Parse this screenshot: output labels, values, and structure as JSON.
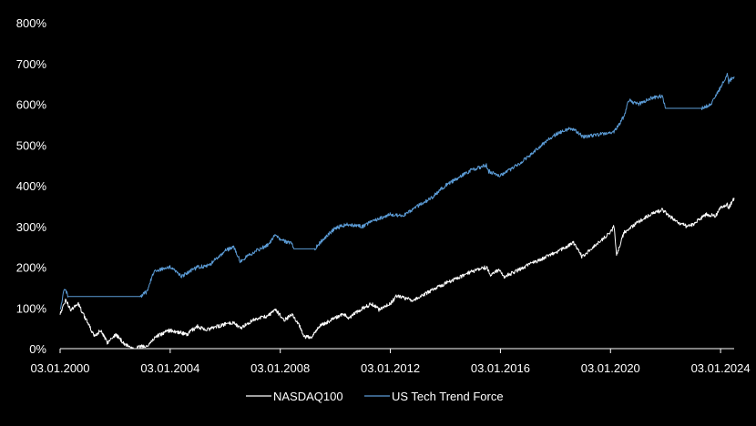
{
  "chart_data": {
    "type": "line",
    "title": "",
    "xlabel": "",
    "ylabel": "",
    "ylim": [
      0,
      800
    ],
    "yticks": [
      0,
      100,
      200,
      300,
      400,
      500,
      600,
      700,
      800
    ],
    "ytick_labels": [
      "0%",
      "100%",
      "200%",
      "300%",
      "400%",
      "500%",
      "600%",
      "700%",
      "800%"
    ],
    "xlim": [
      "2000-01-03",
      "2024-07-01"
    ],
    "xticks": [
      "2000-01-03",
      "2004-01-03",
      "2008-01-03",
      "2012-01-03",
      "2016-01-03",
      "2020-01-03",
      "2024-01-03"
    ],
    "xtick_labels": [
      "03.01.2000",
      "03.01.2004",
      "03.01.2008",
      "03.01.2012",
      "03.01.2016",
      "03.01.2020",
      "03.01.2024"
    ],
    "grid": false,
    "legend": "bottom-center",
    "series": [
      {
        "name": "NASDAQ100",
        "color": "#ffffff",
        "points": [
          [
            "2000-01-03",
            85
          ],
          [
            "2000-03-20",
            120
          ],
          [
            "2000-05-20",
            95
          ],
          [
            "2000-09-01",
            110
          ],
          [
            "2000-12-15",
            70
          ],
          [
            "2001-04-01",
            30
          ],
          [
            "2001-06-20",
            45
          ],
          [
            "2001-09-20",
            15
          ],
          [
            "2002-01-10",
            35
          ],
          [
            "2002-05-15",
            10
          ],
          [
            "2002-09-20",
            0
          ],
          [
            "2002-12-15",
            5
          ],
          [
            "2003-03-10",
            8
          ],
          [
            "2003-07-01",
            30
          ],
          [
            "2003-12-31",
            45
          ],
          [
            "2004-05-01",
            40
          ],
          [
            "2004-08-10",
            35
          ],
          [
            "2004-12-31",
            55
          ],
          [
            "2005-04-20",
            45
          ],
          [
            "2005-12-31",
            60
          ],
          [
            "2006-04-20",
            65
          ],
          [
            "2006-07-20",
            50
          ],
          [
            "2006-12-31",
            70
          ],
          [
            "2007-07-20",
            80
          ],
          [
            "2007-10-31",
            95
          ],
          [
            "2008-03-01",
            70
          ],
          [
            "2008-06-01",
            85
          ],
          [
            "2008-09-20",
            55
          ],
          [
            "2008-11-20",
            28
          ],
          [
            "2009-03-09",
            30
          ],
          [
            "2009-06-01",
            55
          ],
          [
            "2009-12-31",
            75
          ],
          [
            "2010-05-01",
            85
          ],
          [
            "2010-07-01",
            75
          ],
          [
            "2010-12-31",
            100
          ],
          [
            "2011-04-30",
            110
          ],
          [
            "2011-08-10",
            95
          ],
          [
            "2011-12-31",
            110
          ],
          [
            "2012-04-01",
            130
          ],
          [
            "2012-11-01",
            118
          ],
          [
            "2013-06-01",
            140
          ],
          [
            "2013-12-31",
            160
          ],
          [
            "2014-06-30",
            175
          ],
          [
            "2014-12-31",
            190
          ],
          [
            "2015-07-01",
            200
          ],
          [
            "2015-08-25",
            180
          ],
          [
            "2015-12-31",
            195
          ],
          [
            "2016-02-10",
            175
          ],
          [
            "2016-12-31",
            205
          ],
          [
            "2017-12-31",
            235
          ],
          [
            "2018-08-31",
            260
          ],
          [
            "2018-12-24",
            225
          ],
          [
            "2019-07-31",
            260
          ],
          [
            "2019-12-31",
            285
          ],
          [
            "2020-02-19",
            300
          ],
          [
            "2020-03-23",
            230
          ],
          [
            "2020-06-30",
            285
          ],
          [
            "2020-12-31",
            310
          ],
          [
            "2021-06-30",
            330
          ],
          [
            "2021-11-20",
            340
          ],
          [
            "2022-06-16",
            310
          ],
          [
            "2022-10-13",
            300
          ],
          [
            "2022-12-31",
            305
          ],
          [
            "2023-06-30",
            330
          ],
          [
            "2023-10-26",
            325
          ],
          [
            "2023-12-31",
            345
          ],
          [
            "2024-03-31",
            355
          ],
          [
            "2024-04-19",
            345
          ],
          [
            "2024-07-01",
            370
          ]
        ]
      },
      {
        "name": "US Tech Trend Force",
        "color": "#5b9bd5",
        "points": [
          [
            "2000-01-03",
            95
          ],
          [
            "2000-03-01",
            150
          ],
          [
            "2000-04-20",
            128
          ],
          [
            "2002-12-01",
            128
          ],
          [
            "2003-03-01",
            140
          ],
          [
            "2003-06-01",
            190
          ],
          [
            "2003-12-31",
            200
          ],
          [
            "2004-06-01",
            178
          ],
          [
            "2004-12-31",
            200
          ],
          [
            "2005-06-01",
            205
          ],
          [
            "2005-12-31",
            240
          ],
          [
            "2006-04-20",
            250
          ],
          [
            "2006-07-20",
            215
          ],
          [
            "2006-12-31",
            235
          ],
          [
            "2007-07-20",
            255
          ],
          [
            "2007-11-01",
            280
          ],
          [
            "2008-01-15",
            265
          ],
          [
            "2008-06-01",
            260
          ],
          [
            "2008-07-01",
            245
          ],
          [
            "2009-04-01",
            245
          ],
          [
            "2009-08-01",
            270
          ],
          [
            "2009-12-31",
            295
          ],
          [
            "2010-06-01",
            305
          ],
          [
            "2010-12-31",
            300
          ],
          [
            "2011-06-01",
            315
          ],
          [
            "2011-12-31",
            330
          ],
          [
            "2012-06-01",
            325
          ],
          [
            "2013-01-01",
            350
          ],
          [
            "2013-06-30",
            370
          ],
          [
            "2013-12-31",
            400
          ],
          [
            "2014-06-30",
            420
          ],
          [
            "2014-12-31",
            440
          ],
          [
            "2015-06-30",
            450
          ],
          [
            "2015-08-01",
            435
          ],
          [
            "2015-12-31",
            425
          ],
          [
            "2016-06-30",
            445
          ],
          [
            "2016-12-31",
            470
          ],
          [
            "2017-06-30",
            500
          ],
          [
            "2017-12-31",
            525
          ],
          [
            "2018-06-30",
            540
          ],
          [
            "2018-09-30",
            535
          ],
          [
            "2018-12-31",
            520
          ],
          [
            "2019-06-30",
            525
          ],
          [
            "2019-12-31",
            530
          ],
          [
            "2020-03-01",
            535
          ],
          [
            "2020-06-30",
            570
          ],
          [
            "2020-09-01",
            610
          ],
          [
            "2020-12-31",
            600
          ],
          [
            "2021-06-30",
            615
          ],
          [
            "2021-11-20",
            620
          ],
          [
            "2021-12-31",
            590
          ],
          [
            "2023-05-01",
            590
          ],
          [
            "2023-09-01",
            600
          ],
          [
            "2023-12-31",
            640
          ],
          [
            "2024-03-31",
            675
          ],
          [
            "2024-04-19",
            655
          ],
          [
            "2024-07-01",
            668
          ]
        ]
      }
    ]
  }
}
